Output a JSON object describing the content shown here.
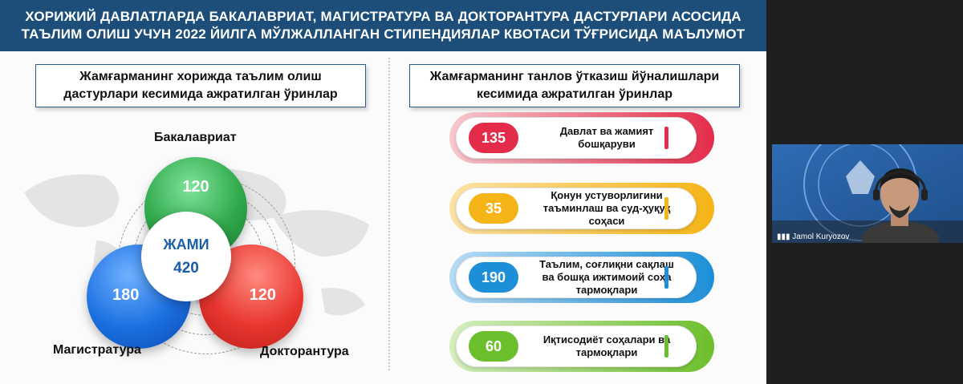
{
  "slide": {
    "title_line1": "ХОРИЖИЙ ДАВЛАТЛАРДА БАКАЛАВРИАТ, МАГИСТРАТУРА ВА ДОКТОРАНТУРА ДАСТУРЛАРИ АСОСИДА",
    "title_line2": "ТАЪЛИМ ОЛИШ УЧУН 2022 ЙИЛГА МЎЛЖАЛЛАНГАН СТИПЕНДИЯЛАР КВОТАСИ ТЎҒРИСИДА МАЪЛУМОТ",
    "left_box": {
      "line1": "Жамғарманинг хорижда таълим олиш",
      "line2": "дастурлари кесимида ажратилган ўринлар"
    },
    "right_box": {
      "line1": "Жамғарманинг танлов ўтказиш йўналишлари",
      "line2": "кесимида ажратилган ўринлар"
    },
    "programs": {
      "bachelor_label": "Бакалавриат",
      "bachelor_value": "120",
      "master_label": "Магистратура",
      "master_value": "180",
      "doctorate_label": "Докторантура",
      "doctorate_value": "120",
      "total_label": "ЖАМИ",
      "total_value": "420"
    },
    "directions": [
      {
        "value": "135",
        "line1": "Давлат ва жамият",
        "line2": "бошқаруви",
        "line3": "",
        "color": "#e32c4a"
      },
      {
        "value": "35",
        "line1": "Қонун устуворлигини",
        "line2": "таъминлаш ва суд-ҳуқуқ",
        "line3": "соҳаси",
        "color": "#f5b417"
      },
      {
        "value": "190",
        "line1": "Таълим, соғлиқни сақлаш",
        "line2": "ва бошқа ижтимоий соҳа",
        "line3": "тармоқлари",
        "color": "#1d8fd8"
      },
      {
        "value": "60",
        "line1": "Иқтисодиёт соҳалари ва",
        "line2": "тармоқлари",
        "line3": "",
        "color": "#6cbf2c"
      }
    ]
  },
  "video": {
    "participant_name": "Jamol Kuryozov"
  },
  "colors": {
    "header_bg": "#1d4e79",
    "green": "#3aa64a",
    "blue": "#1a6fe0",
    "red": "#e8352e"
  }
}
